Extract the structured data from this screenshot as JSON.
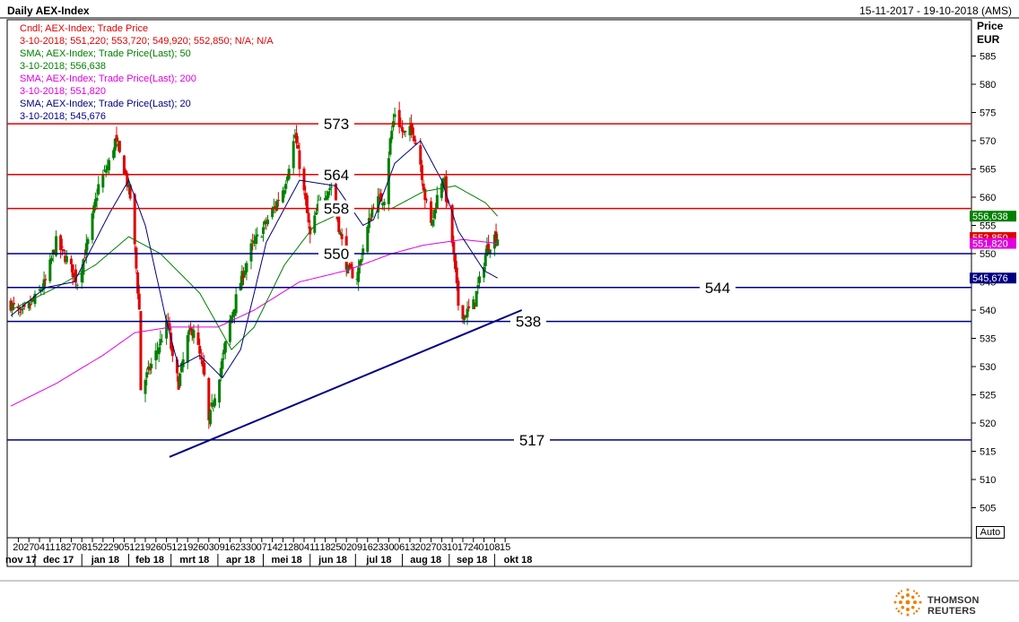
{
  "header": {
    "title": "Daily AEX-Index",
    "date_range": "15-11-2017 - 19-10-2018 (AMS)"
  },
  "axis": {
    "price_label": "Price",
    "currency_label": "EUR",
    "auto_label": "Auto"
  },
  "branding": {
    "name": "THOMSON REUTERS"
  },
  "legend": [
    {
      "text": "Cndl; AEX-Index; Trade Price",
      "color": "#e00000"
    },
    {
      "text": "3-10-2018; 551,220; 553,720; 549,920; 552,850; N/A; N/A",
      "color": "#e00000"
    },
    {
      "text": "SMA; AEX-Index; Trade Price(Last);  50",
      "color": "#008000"
    },
    {
      "text": "3-10-2018; 556,638",
      "color": "#008000"
    },
    {
      "text": "SMA; AEX-Index; Trade Price(Last);  200",
      "color": "#e000e0"
    },
    {
      "text": "3-10-2018; 551,820",
      "color": "#e000e0"
    },
    {
      "text": "SMA; AEX-Index; Trade Price(Last);  20",
      "color": "#000080"
    },
    {
      "text": "3-10-2018; 545,676",
      "color": "#000080"
    }
  ],
  "chart_data": {
    "type": "candlestick",
    "ylim": [
      500,
      590
    ],
    "y_ticks": [
      505,
      510,
      515,
      520,
      525,
      530,
      535,
      540,
      545,
      550,
      555,
      560,
      565,
      570,
      575,
      580,
      585
    ],
    "x_day_ticks": [
      "20",
      "27",
      "04",
      "11",
      "18",
      "27",
      "08",
      "15",
      "22",
      "29",
      "05",
      "12",
      "19",
      "26",
      "05",
      "12",
      "19",
      "26",
      "03",
      "09",
      "16",
      "23",
      "30",
      "07",
      "14",
      "21",
      "28",
      "04",
      "11",
      "18",
      "25",
      "02",
      "09",
      "16",
      "23",
      "30",
      "06",
      "13",
      "20",
      "27",
      "03",
      "10",
      "17",
      "24",
      "01",
      "08",
      "15"
    ],
    "x_month_labels": [
      "nov 17",
      "dec 17",
      "jan 18",
      "feb 18",
      "mrt 18",
      "apr 18",
      "mei 18",
      "jun 18",
      "jul 18",
      "aug 18",
      "sep 18",
      "okt 18"
    ],
    "horizontal_levels": [
      {
        "value": 573,
        "label": "573",
        "color": "#e00000"
      },
      {
        "value": 564,
        "label": "564",
        "color": "#e00000"
      },
      {
        "value": 558,
        "label": "558",
        "color": "#e00000"
      },
      {
        "value": 550,
        "label": "550",
        "color": "#000080"
      },
      {
        "value": 544,
        "label": "544",
        "color": "#000080"
      },
      {
        "value": 538,
        "label": "538",
        "color": "#000080"
      },
      {
        "value": 517,
        "label": "517",
        "color": "#000080"
      }
    ],
    "trendline": {
      "start_date": "2018-02-28",
      "start": 514,
      "end_date": "2018-10-19",
      "end": 540,
      "color": "#000080"
    },
    "last_value_tags": [
      {
        "label": "556,638",
        "value": 556.638,
        "bg": "#008000",
        "fg": "#ffffff"
      },
      {
        "label": "552,850",
        "value": 552.85,
        "bg": "#e00000",
        "fg": "#ffffff"
      },
      {
        "label": "551,820",
        "value": 551.82,
        "bg": "#e000e0",
        "fg": "#ffffff"
      },
      {
        "label": "545,676",
        "value": 545.676,
        "bg": "#000080",
        "fg": "#ffffff"
      }
    ],
    "close_anchors": [
      [
        "2017-11-15",
        541
      ],
      [
        "2017-11-22",
        539
      ],
      [
        "2017-12-01",
        542
      ],
      [
        "2017-12-08",
        545
      ],
      [
        "2017-12-15",
        552
      ],
      [
        "2017-12-22",
        549
      ],
      [
        "2017-12-29",
        545
      ],
      [
        "2018-01-05",
        552
      ],
      [
        "2018-01-12",
        562
      ],
      [
        "2018-01-19",
        566
      ],
      [
        "2018-01-23",
        570
      ],
      [
        "2018-01-29",
        565
      ],
      [
        "2018-02-02",
        560
      ],
      [
        "2018-02-05",
        551
      ],
      [
        "2018-02-08",
        540
      ],
      [
        "2018-02-09",
        526
      ],
      [
        "2018-02-14",
        529
      ],
      [
        "2018-02-20",
        533
      ],
      [
        "2018-02-27",
        538
      ],
      [
        "2018-03-02",
        531
      ],
      [
        "2018-03-06",
        527
      ],
      [
        "2018-03-12",
        535
      ],
      [
        "2018-03-16",
        537
      ],
      [
        "2018-03-23",
        528
      ],
      [
        "2018-03-26",
        520
      ],
      [
        "2018-03-29",
        524
      ],
      [
        "2018-04-04",
        531
      ],
      [
        "2018-04-09",
        538
      ],
      [
        "2018-04-16",
        545
      ],
      [
        "2018-04-23",
        551
      ],
      [
        "2018-04-30",
        554
      ],
      [
        "2018-05-08",
        558
      ],
      [
        "2018-05-15",
        562
      ],
      [
        "2018-05-22",
        571
      ],
      [
        "2018-05-29",
        559
      ],
      [
        "2018-06-01",
        553
      ],
      [
        "2018-06-08",
        560
      ],
      [
        "2018-06-15",
        562
      ],
      [
        "2018-06-22",
        552
      ],
      [
        "2018-06-26",
        547
      ],
      [
        "2018-07-02",
        546
      ],
      [
        "2018-07-06",
        551
      ],
      [
        "2018-07-13",
        559
      ],
      [
        "2018-07-20",
        560
      ],
      [
        "2018-07-24",
        570
      ],
      [
        "2018-07-27",
        575
      ],
      [
        "2018-08-02",
        571
      ],
      [
        "2018-08-08",
        572
      ],
      [
        "2018-08-13",
        566
      ],
      [
        "2018-08-16",
        560
      ],
      [
        "2018-08-20",
        555
      ],
      [
        "2018-08-24",
        560
      ],
      [
        "2018-08-28",
        564
      ],
      [
        "2018-09-03",
        552
      ],
      [
        "2018-09-07",
        541
      ],
      [
        "2018-09-11",
        539
      ],
      [
        "2018-09-17",
        541
      ],
      [
        "2018-09-21",
        545
      ],
      [
        "2018-09-26",
        551
      ],
      [
        "2018-10-01",
        553
      ],
      [
        "2018-10-03",
        552.85
      ]
    ],
    "sma50_anchors": [
      [
        "2017-11-15",
        540
      ],
      [
        "2017-12-15",
        544
      ],
      [
        "2018-01-10",
        548
      ],
      [
        "2018-02-01",
        553
      ],
      [
        "2018-02-22",
        550
      ],
      [
        "2018-03-20",
        543
      ],
      [
        "2018-04-10",
        533
      ],
      [
        "2018-04-25",
        537
      ],
      [
        "2018-05-15",
        548
      ],
      [
        "2018-06-04",
        555
      ],
      [
        "2018-06-28",
        558
      ],
      [
        "2018-07-25",
        558
      ],
      [
        "2018-08-15",
        561
      ],
      [
        "2018-09-05",
        562
      ],
      [
        "2018-09-25",
        559
      ],
      [
        "2018-10-03",
        556.638
      ]
    ],
    "sma200_anchors": [
      [
        "2017-11-15",
        523
      ],
      [
        "2017-12-15",
        527
      ],
      [
        "2018-01-15",
        532
      ],
      [
        "2018-02-05",
        536
      ],
      [
        "2018-03-01",
        537
      ],
      [
        "2018-04-01",
        537
      ],
      [
        "2018-04-25",
        540
      ],
      [
        "2018-05-25",
        545
      ],
      [
        "2018-06-25",
        547
      ],
      [
        "2018-07-25",
        550
      ],
      [
        "2018-08-15",
        551.5
      ],
      [
        "2018-09-10",
        552.5
      ],
      [
        "2018-10-03",
        551.82
      ]
    ],
    "sma20_anchors": [
      [
        "2017-11-15",
        539
      ],
      [
        "2017-12-08",
        544
      ],
      [
        "2017-12-27",
        545
      ],
      [
        "2018-01-19",
        557
      ],
      [
        "2018-02-01",
        563
      ],
      [
        "2018-02-12",
        555
      ],
      [
        "2018-02-26",
        538
      ],
      [
        "2018-03-06",
        530
      ],
      [
        "2018-03-20",
        532
      ],
      [
        "2018-04-04",
        528
      ],
      [
        "2018-04-16",
        533
      ],
      [
        "2018-05-03",
        552
      ],
      [
        "2018-05-25",
        563
      ],
      [
        "2018-06-18",
        562
      ],
      [
        "2018-07-06",
        555
      ],
      [
        "2018-07-13",
        556
      ],
      [
        "2018-07-27",
        566
      ],
      [
        "2018-08-13",
        570
      ],
      [
        "2018-08-27",
        563
      ],
      [
        "2018-09-07",
        554
      ],
      [
        "2018-09-24",
        547
      ],
      [
        "2018-10-03",
        545.676
      ]
    ]
  }
}
